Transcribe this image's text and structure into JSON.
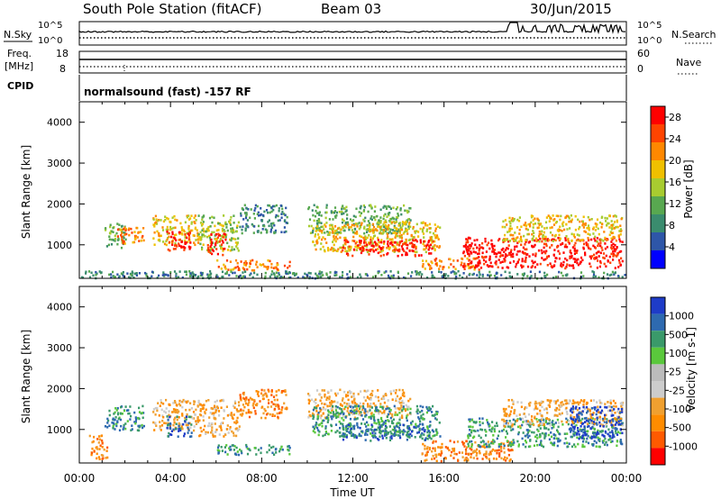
{
  "header": {
    "station": "South Pole Station (fitACF)",
    "beam": "Beam 03",
    "date": "30/Jun/2015"
  },
  "strip": {
    "left_label_1": "N.Sky",
    "left_tick_top_1": "10^5",
    "left_tick_bot_1": "10^0",
    "right_tick_top_1": "10^5",
    "right_tick_bot_1": "10^0",
    "right_label_1": "N.Search",
    "left_label_2a": "Freq.",
    "left_label_2b": "[MHz]",
    "left_tick_top_2": "18",
    "left_tick_bot_2": "8",
    "right_tick_top_2": "60",
    "right_tick_bot_2": "0",
    "right_label_2": "Nave",
    "cpid_label": "CPID",
    "cpid_text": "normalsound (fast) -157 RF"
  },
  "colors": {
    "power": [
      "#0000ff",
      "#2e56a8",
      "#3a8c6e",
      "#58a850",
      "#a8cc30",
      "#f0c000",
      "#ff8800",
      "#ff4400",
      "#ff0000"
    ],
    "velocity": [
      "#ff0000",
      "#ff5a00",
      "#ff8c00",
      "#f0a030",
      "#cccccc",
      "#bcbcbc",
      "#5ac83c",
      "#3a9a6a",
      "#2e6ab0",
      "#1e3cc8"
    ]
  },
  "chart_data": [
    {
      "type": "heatmap",
      "name": "power",
      "xlabel": "Time UT",
      "ylabel": "Slant Range [km]",
      "x_ticks": [
        "00:00",
        "04:00",
        "08:00",
        "12:00",
        "16:00",
        "20:00",
        "00:00"
      ],
      "y_ticks": [
        1000,
        2000,
        3000,
        4000
      ],
      "xlim_hours": [
        0,
        24
      ],
      "ylim_km": [
        180,
        4500
      ],
      "colorbar": {
        "label": "Power [dB]",
        "ticks": [
          4,
          8,
          12,
          16,
          20,
          24,
          28
        ],
        "range": [
          0,
          30
        ]
      },
      "patches": [
        {
          "t": [
            1.1,
            2.0
          ],
          "r": [
            950,
            1600
          ],
          "level": 3
        },
        {
          "t": [
            1.5,
            2.8
          ],
          "r": [
            1050,
            1450
          ],
          "level": 6
        },
        {
          "t": [
            3.2,
            5.2
          ],
          "r": [
            1000,
            1750
          ],
          "level": 5
        },
        {
          "t": [
            3.8,
            4.9
          ],
          "r": [
            850,
            1350
          ],
          "level": 8
        },
        {
          "t": [
            5.2,
            7.0
          ],
          "r": [
            850,
            1750
          ],
          "level": 4
        },
        {
          "t": [
            5.6,
            6.4
          ],
          "r": [
            750,
            1300
          ],
          "level": 8
        },
        {
          "t": [
            6.0,
            9.2
          ],
          "r": [
            400,
            650
          ],
          "level": 6
        },
        {
          "t": [
            7.0,
            9.1
          ],
          "r": [
            1300,
            2000
          ],
          "level": 2
        },
        {
          "t": [
            10.0,
            14.5
          ],
          "r": [
            1300,
            2000
          ],
          "level": 3
        },
        {
          "t": [
            10.2,
            15.8
          ],
          "r": [
            850,
            1600
          ],
          "level": 5
        },
        {
          "t": [
            11.5,
            15.5
          ],
          "r": [
            750,
            1150
          ],
          "level": 8
        },
        {
          "t": [
            15.0,
            17.5
          ],
          "r": [
            400,
            700
          ],
          "level": 6
        },
        {
          "t": [
            16.8,
            23.8
          ],
          "r": [
            450,
            1200
          ],
          "level": 8
        },
        {
          "t": [
            18.5,
            23.8
          ],
          "r": [
            1100,
            1750
          ],
          "level": 5
        },
        {
          "t": [
            0.0,
            24.0
          ],
          "r": [
            200,
            380
          ],
          "level": 2
        }
      ]
    },
    {
      "type": "heatmap",
      "name": "velocity",
      "xlabel": "Time UT",
      "ylabel": "Slant Range [km]",
      "x_ticks": [
        "00:00",
        "04:00",
        "08:00",
        "12:00",
        "16:00",
        "20:00",
        "00:00"
      ],
      "y_ticks": [
        1000,
        2000,
        3000,
        4000
      ],
      "xlim_hours": [
        0,
        24
      ],
      "ylim_km": [
        180,
        4500
      ],
      "colorbar": {
        "label": "Velocity [m s-1]",
        "ticks": [
          "1000",
          "500",
          "100",
          "25",
          "-25",
          "-100",
          "-500",
          "-1000"
        ]
      },
      "patches": [
        {
          "t": [
            0.4,
            1.2
          ],
          "r": [
            300,
            900
          ],
          "level": 2
        },
        {
          "t": [
            1.1,
            2.8
          ],
          "r": [
            1000,
            1600
          ],
          "level": 7
        },
        {
          "t": [
            3.2,
            5.2
          ],
          "r": [
            1000,
            1750
          ],
          "level": 3
        },
        {
          "t": [
            3.8,
            4.9
          ],
          "r": [
            850,
            1350
          ],
          "level": 8
        },
        {
          "t": [
            5.2,
            7.0
          ],
          "r": [
            850,
            1750
          ],
          "level": 3
        },
        {
          "t": [
            6.0,
            9.2
          ],
          "r": [
            400,
            650
          ],
          "level": 7
        },
        {
          "t": [
            7.0,
            9.1
          ],
          "r": [
            1300,
            2000
          ],
          "level": 2
        },
        {
          "t": [
            10.0,
            14.5
          ],
          "r": [
            1300,
            2000
          ],
          "level": 3
        },
        {
          "t": [
            10.2,
            15.8
          ],
          "r": [
            850,
            1600
          ],
          "level": 7
        },
        {
          "t": [
            11.5,
            15.5
          ],
          "r": [
            750,
            1150
          ],
          "level": 8
        },
        {
          "t": [
            15.0,
            19.0
          ],
          "r": [
            250,
            750
          ],
          "level": 2
        },
        {
          "t": [
            17.0,
            23.8
          ],
          "r": [
            600,
            1300
          ],
          "level": 7
        },
        {
          "t": [
            18.5,
            23.8
          ],
          "r": [
            1100,
            1750
          ],
          "level": 3
        },
        {
          "t": [
            21.5,
            23.8
          ],
          "r": [
            800,
            1600
          ],
          "level": 9
        }
      ]
    }
  ]
}
